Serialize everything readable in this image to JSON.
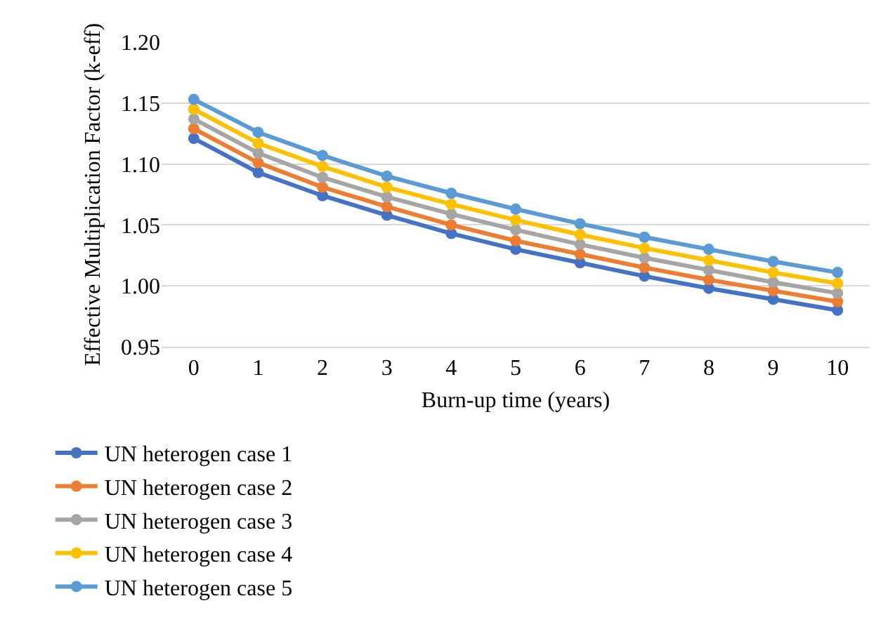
{
  "chart_data": {
    "type": "line",
    "xlabel": "Burn-up time (years)",
    "ylabel": "Effective Multiplication Factor (k-eff)",
    "categories": [
      "0",
      "1",
      "2",
      "3",
      "4",
      "5",
      "6",
      "7",
      "8",
      "9",
      "10"
    ],
    "ylim": [
      0.95,
      1.2
    ],
    "yticks": [
      {
        "value": 0.95,
        "label": "0.95"
      },
      {
        "value": 1.0,
        "label": "1.00"
      },
      {
        "value": 1.05,
        "label": "1.05"
      },
      {
        "value": 1.1,
        "label": "1.10"
      },
      {
        "value": 1.15,
        "label": "1.15"
      },
      {
        "value": 1.2,
        "label": "1.20"
      }
    ],
    "grid": "y",
    "legend": "bottom",
    "marker": "circle",
    "line_style": "solid",
    "series": [
      {
        "name": "UN heterogen case 1",
        "color": "#4472c4",
        "values": [
          1.121,
          1.093,
          1.074,
          1.058,
          1.043,
          1.03,
          1.019,
          1.008,
          0.998,
          0.989,
          0.98
        ]
      },
      {
        "name": "UN heterogen case 2",
        "color": "#ed7d31",
        "values": [
          1.129,
          1.101,
          1.081,
          1.065,
          1.05,
          1.037,
          1.026,
          1.015,
          1.005,
          0.996,
          0.987
        ]
      },
      {
        "name": "UN heterogen case 3",
        "color": "#a5a5a5",
        "values": [
          1.137,
          1.109,
          1.089,
          1.073,
          1.059,
          1.046,
          1.034,
          1.023,
          1.013,
          1.003,
          0.994
        ]
      },
      {
        "name": "UN heterogen case 4",
        "color": "#ffc000",
        "values": [
          1.145,
          1.117,
          1.098,
          1.081,
          1.067,
          1.054,
          1.042,
          1.031,
          1.021,
          1.011,
          1.002
        ]
      },
      {
        "name": "UN heterogen case 5",
        "color": "#5b9bd5",
        "values": [
          1.153,
          1.126,
          1.107,
          1.09,
          1.076,
          1.063,
          1.051,
          1.04,
          1.03,
          1.02,
          1.011
        ]
      }
    ]
  }
}
